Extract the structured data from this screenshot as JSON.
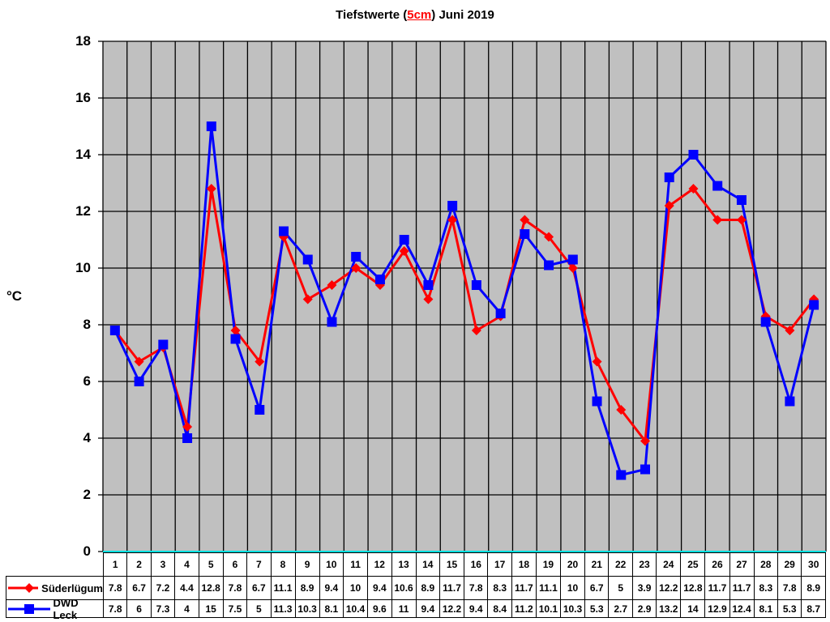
{
  "chart_data": {
    "type": "line",
    "title": "Tiefstwerte (5cm) Juni 2019",
    "title_parts": {
      "pre": "Tiefstwerte (",
      "highlight": "5cm",
      "post": ") Juni 2019"
    },
    "xlabel": "",
    "ylabel": "°C",
    "ylim": [
      0,
      18
    ],
    "yticks": [
      "18",
      "16",
      "14",
      "12",
      "10",
      "8",
      "6",
      "4",
      "2",
      "0"
    ],
    "grid": true,
    "legend_position": "data-table-left",
    "categories": [
      "1",
      "2",
      "3",
      "4",
      "5",
      "6",
      "7",
      "8",
      "9",
      "10",
      "11",
      "12",
      "13",
      "14",
      "15",
      "16",
      "17",
      "18",
      "19",
      "20",
      "21",
      "22",
      "23",
      "24",
      "25",
      "26",
      "27",
      "28",
      "29",
      "30"
    ],
    "series": [
      {
        "name": "Süderlügum",
        "color": "#ff0000",
        "marker": "diamond",
        "values": [
          7.8,
          6.7,
          7.2,
          4.4,
          12.8,
          7.8,
          6.7,
          11.1,
          8.9,
          9.4,
          10,
          9.4,
          10.6,
          8.9,
          11.7,
          7.8,
          8.3,
          11.7,
          11.1,
          10,
          6.7,
          5,
          3.9,
          12.2,
          12.8,
          11.7,
          11.7,
          8.3,
          7.8,
          8.9
        ]
      },
      {
        "name": "DWD Leck",
        "color": "#0000ff",
        "marker": "square",
        "values": [
          7.8,
          6,
          7.3,
          4,
          15,
          7.5,
          5,
          11.3,
          10.3,
          8.1,
          10.4,
          9.6,
          11,
          9.4,
          12.2,
          9.4,
          8.4,
          11.2,
          10.1,
          10.3,
          5.3,
          2.7,
          2.9,
          13.2,
          14,
          12.9,
          12.4,
          8.1,
          5.3,
          8.7
        ]
      }
    ],
    "plot_background": "#c0c0c0"
  }
}
